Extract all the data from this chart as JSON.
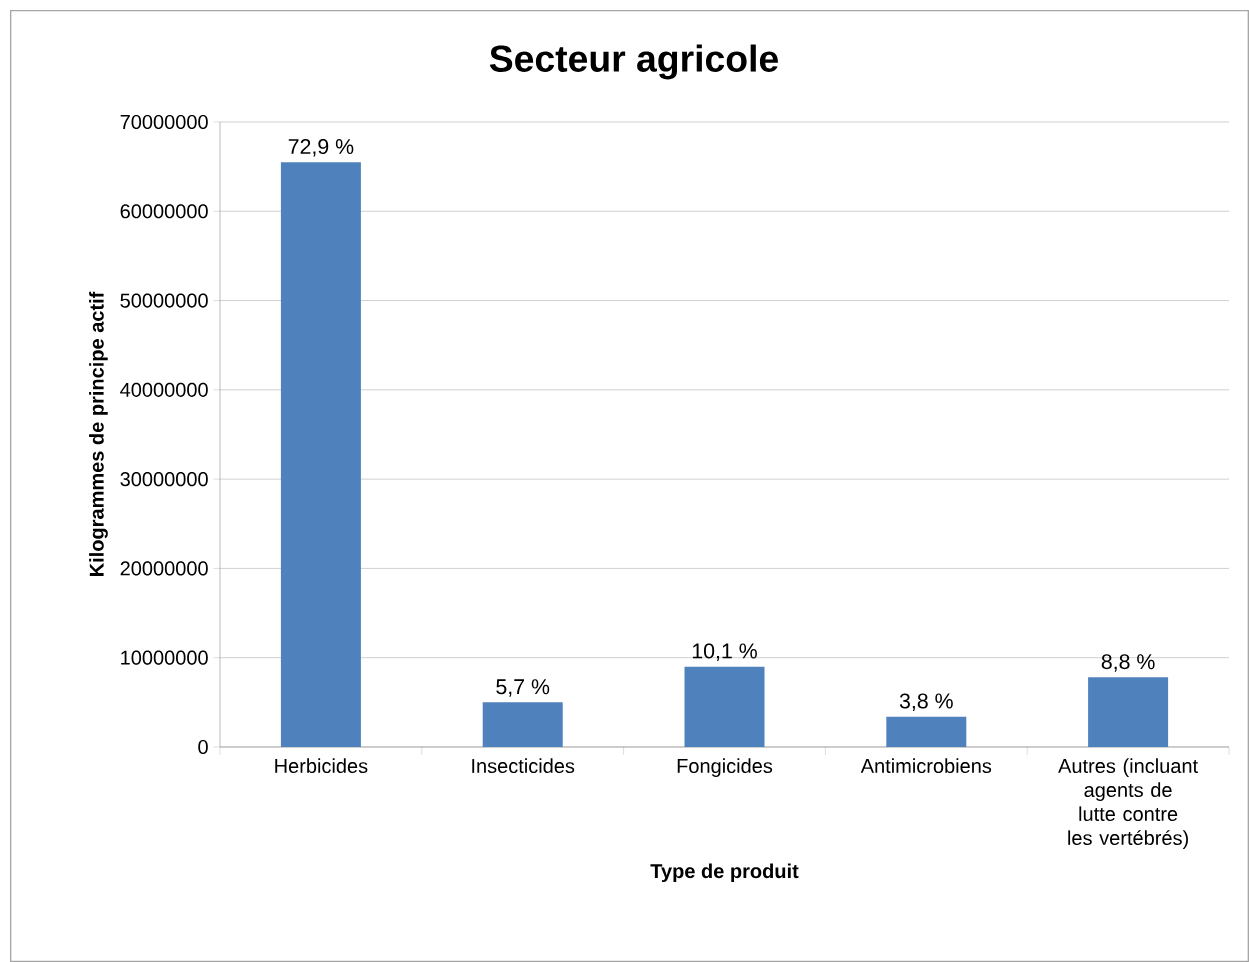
{
  "chart_data": {
    "type": "bar",
    "title": "Secteur agricole",
    "xlabel": "Type de produit",
    "ylabel": "Kilogrammes de principe actif",
    "categories": [
      "Herbicides",
      "Insecticides",
      "Fongicides",
      "Antimicrobiens",
      "Autres (incluant agents de lutte contre les vertébrés)"
    ],
    "values": [
      65500000,
      5000000,
      9000000,
      3400000,
      7800000
    ],
    "annotations": [
      "72,9 %",
      "5,7 %",
      "10,1 %",
      "3,8 %",
      "8,8 %"
    ],
    "color": "#4f81bd",
    "ylim": [
      0,
      70000000
    ],
    "yticks": [
      0,
      10000000,
      20000000,
      30000000,
      40000000,
      50000000,
      60000000,
      70000000
    ],
    "grid": "y"
  }
}
